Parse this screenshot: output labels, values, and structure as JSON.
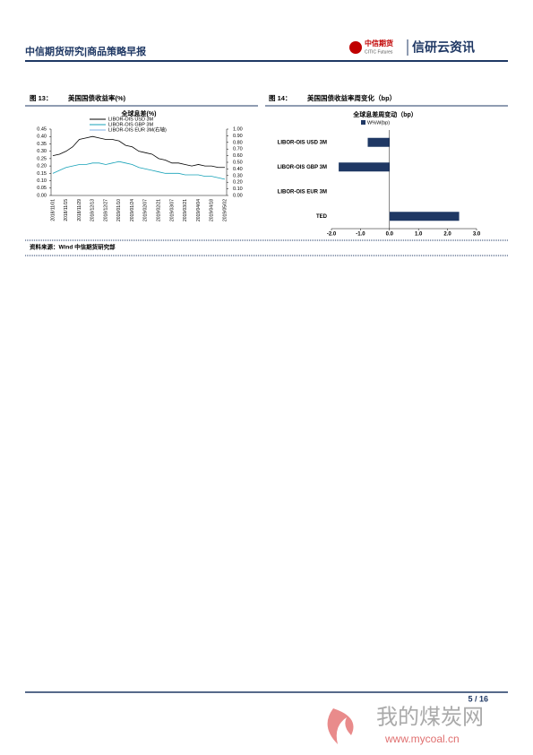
{
  "header": {
    "title": "中信期货研究|商品策略早报",
    "logo_cn": "中信期货",
    "logo_en": "CITIC Futures",
    "brand": "信研云资讯"
  },
  "figures": [
    {
      "label": "图 13：",
      "caption": "美国国债收益率(%)"
    },
    {
      "label": "图 14：",
      "caption": "美国国债收益率周变化（bp）"
    }
  ],
  "chart_data": [
    {
      "type": "line",
      "title": "全球息差(%)",
      "categories": [
        "2018/11/01",
        null,
        "2018/11/15",
        null,
        "2018/11/29",
        null,
        "2018/12/13",
        null,
        "2018/12/27",
        null,
        "2019/01/10",
        null,
        "2019/01/24",
        null,
        "2019/02/07",
        null,
        "2019/02/21",
        null,
        "2019/03/07",
        null,
        "2019/03/21",
        null,
        "2019/04/04",
        null,
        "2019/04/18",
        null,
        "2019/05/02"
      ],
      "series": [
        {
          "name": "LIBOR-OIS USD 3M",
          "color": "#000000",
          "values": [
            0.27,
            0.28,
            0.3,
            0.33,
            0.38,
            0.39,
            0.4,
            0.39,
            0.38,
            0.38,
            0.37,
            0.34,
            0.33,
            0.3,
            0.29,
            0.28,
            0.25,
            0.24,
            0.22,
            0.22,
            0.21,
            0.2,
            0.21,
            0.2,
            0.2,
            0.19,
            0.19
          ]
        },
        {
          "name": "LIBOR-OIS GBP 3M",
          "color": "#17a2b8",
          "values": [
            0.15,
            0.17,
            0.19,
            0.2,
            0.21,
            0.21,
            0.22,
            0.22,
            0.21,
            0.22,
            0.23,
            0.22,
            0.21,
            0.19,
            0.18,
            0.17,
            0.16,
            0.15,
            0.15,
            0.15,
            0.14,
            0.14,
            0.14,
            0.13,
            0.13,
            0.12,
            0.11
          ]
        },
        {
          "name": "LIBOR-OIS EUR 3M(右轴)",
          "color": "#7fb2e5",
          "axis": "y2",
          "values": [
            null,
            null,
            null,
            null,
            null,
            null,
            null,
            null,
            null,
            null,
            null,
            null,
            null,
            null,
            null,
            null,
            null,
            null,
            null,
            null,
            null,
            null,
            null,
            null,
            null,
            null,
            null
          ]
        }
      ],
      "ylim": [
        0,
        0.45
      ],
      "yticks": [
        {
          "value": 0,
          "label": "0.00"
        },
        {
          "value": 0.05,
          "label": "0.05"
        },
        {
          "value": 0.1,
          "label": "0.10"
        },
        {
          "value": 0.15,
          "label": "0.15"
        },
        {
          "value": 0.2,
          "label": "0.20"
        },
        {
          "value": 0.25,
          "label": "0.25"
        },
        {
          "value": 0.3,
          "label": "0.30"
        },
        {
          "value": 0.35,
          "label": "0.35"
        },
        {
          "value": 0.4,
          "label": "0.40"
        },
        {
          "value": 0.45,
          "label": "0.45"
        }
      ],
      "y2lim": [
        0,
        1
      ],
      "y2ticks": [
        {
          "value": 0,
          "label": "0.00"
        },
        {
          "value": 0.1,
          "label": "0.10"
        },
        {
          "value": 0.2,
          "label": "0.20"
        },
        {
          "value": 0.3,
          "label": "0.30"
        },
        {
          "value": 0.4,
          "label": "0.40"
        },
        {
          "value": 0.5,
          "label": "0.50"
        },
        {
          "value": 0.6,
          "label": "0.60"
        },
        {
          "value": 0.7,
          "label": "0.70"
        },
        {
          "value": 0.8,
          "label": "0.80"
        },
        {
          "value": 0.9,
          "label": "0.90"
        },
        {
          "value": 1,
          "label": "1.00"
        }
      ]
    },
    {
      "type": "hbar",
      "title": "全球息差周变动（bp）",
      "categories": [
        "LIBOR-OIS USD 3M",
        "LIBOR-OIS GBP 3M",
        "LIBOR-OIS EUR 3M",
        "TED"
      ],
      "series": [
        {
          "name": "W%W(bp)",
          "color": "#1f3864",
          "values": [
            -0.75,
            -1.75,
            0,
            2.4
          ]
        }
      ],
      "xlim": [
        -2,
        3
      ],
      "xticks": [
        {
          "value": -2,
          "label": "-2.0"
        },
        {
          "value": -1,
          "label": "-1.0"
        },
        {
          "value": 0,
          "label": "0.0"
        },
        {
          "value": 1,
          "label": "1.0"
        },
        {
          "value": 2,
          "label": "2.0"
        },
        {
          "value": 3,
          "label": "3.0"
        }
      ]
    }
  ],
  "source": "资料来源：Wind  中信期货研究部",
  "page": "5 / 16",
  "watermark": {
    "name": "我的煤炭网",
    "url": "www.mycoal.cn"
  }
}
